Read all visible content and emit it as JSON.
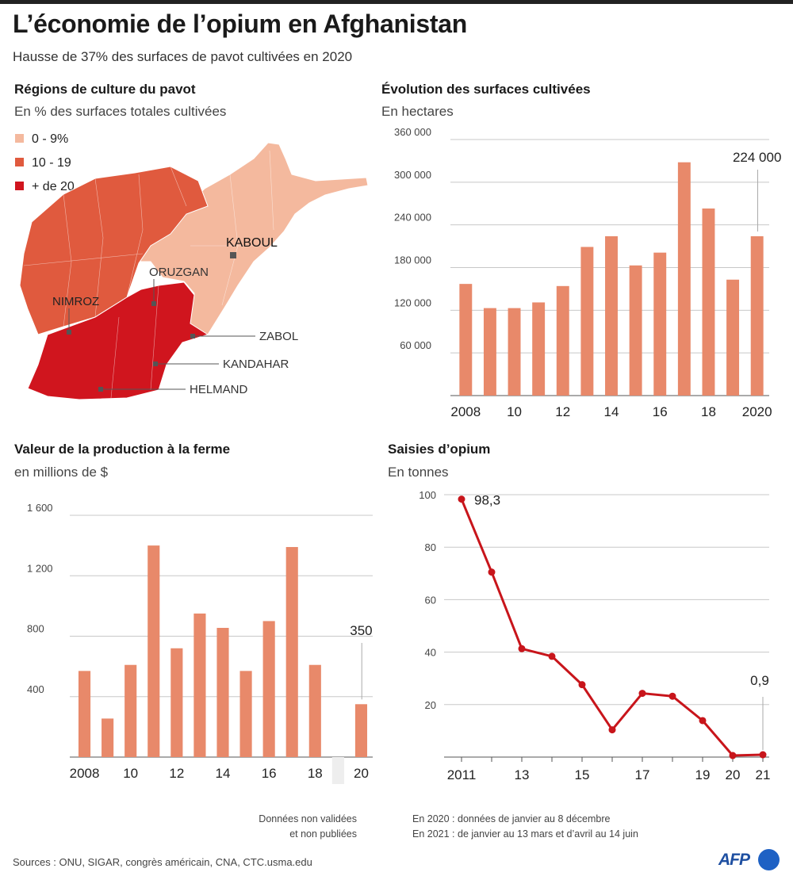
{
  "header": {
    "title": "L’économie de l’opium en Afghanistan",
    "subtitle": "Hausse de 37% des surfaces de pavot cultivées en 2020"
  },
  "map": {
    "title": "Régions de culture du pavot",
    "subtitle": "En % des surfaces totales cultivées",
    "legend": [
      {
        "label": "0 - 9%",
        "color": "#f4b99e"
      },
      {
        "label": "10 - 19",
        "color": "#e05a3e"
      },
      {
        "label": "+ de 20",
        "color": "#d0151e"
      }
    ],
    "labels": {
      "kaboul": "KABOUL",
      "oruzgan": "ORUZGAN",
      "nimroz": "NIMROZ",
      "zabol": "ZABOL",
      "kandahar": "KANDAHAR",
      "helmand": "HELMAND"
    }
  },
  "surfaces": {
    "title": "Évolution des surfaces cultivées",
    "subtitle": "En hectares",
    "highlight_label": "224 000"
  },
  "production": {
    "title": "Valeur de la production à la ferme",
    "subtitle": "en millions de $",
    "highlight_label": "350",
    "note_line1": "Données non validées",
    "note_line2": "et non publiées"
  },
  "saisies": {
    "title": "Saisies d’opium",
    "subtitle": "En tonnes",
    "label_first": "98,3",
    "label_last": "0,9",
    "note_line1": "En 2020 : données de janvier au 8 décembre",
    "note_line2": "En 2021 : de janvier au 13 mars et d’avril au 14 juin"
  },
  "footer": {
    "sources": "Sources : ONU, SIGAR, congrès américain, CNA, CTC.usma.edu",
    "logo": "AFP"
  },
  "colors": {
    "bar": "#e8896a",
    "line": "#c8151b",
    "grid": "#c8c8c8",
    "nodata": "#eeeeee"
  },
  "chart_data": [
    {
      "id": "surfaces",
      "type": "bar",
      "x": [
        2008,
        2009,
        2010,
        2011,
        2012,
        2013,
        2014,
        2015,
        2016,
        2017,
        2018,
        2019,
        2020
      ],
      "values": [
        157000,
        123000,
        123000,
        131000,
        154000,
        209000,
        224000,
        183000,
        201000,
        328000,
        263000,
        163000,
        224000
      ],
      "ylim": [
        0,
        360000
      ],
      "yticks": [
        60000,
        120000,
        180000,
        240000,
        300000,
        360000
      ],
      "ytick_labels": [
        "60 000",
        "120 000",
        "180 000",
        "240 000",
        "300 000",
        "360 000"
      ],
      "xtick_labels": [
        {
          "x": 2008,
          "label": "2008"
        },
        {
          "x": 2010,
          "label": "10"
        },
        {
          "x": 2012,
          "label": "12"
        },
        {
          "x": 2014,
          "label": "14"
        },
        {
          "x": 2016,
          "label": "16"
        },
        {
          "x": 2018,
          "label": "18"
        },
        {
          "x": 2020,
          "label": "2020"
        }
      ],
      "annotation": {
        "x": 2020,
        "label": "224 000"
      },
      "grid": true
    },
    {
      "id": "production",
      "type": "bar",
      "x": [
        2008,
        2009,
        2010,
        2011,
        2012,
        2013,
        2014,
        2015,
        2016,
        2017,
        2018,
        2019,
        2020
      ],
      "values": [
        570,
        255,
        610,
        1400,
        720,
        950,
        855,
        570,
        900,
        1390,
        610,
        null,
        350
      ],
      "no_data": [
        2019
      ],
      "ylim": [
        0,
        1600
      ],
      "yticks": [
        400,
        800,
        1200,
        1600
      ],
      "ytick_labels": [
        "400",
        "800",
        "1 200",
        "1 600"
      ],
      "xtick_labels": [
        {
          "x": 2008,
          "label": "2008"
        },
        {
          "x": 2010,
          "label": "10"
        },
        {
          "x": 2012,
          "label": "12"
        },
        {
          "x": 2014,
          "label": "14"
        },
        {
          "x": 2016,
          "label": "16"
        },
        {
          "x": 2018,
          "label": "18"
        },
        {
          "x": 2020,
          "label": "20"
        }
      ],
      "annotation": {
        "x": 2020,
        "label": "350"
      },
      "grid": true
    },
    {
      "id": "saisies",
      "type": "line",
      "x": [
        2011,
        2012,
        2013,
        2014,
        2015,
        2016,
        2017,
        2018,
        2019,
        2020,
        2021
      ],
      "values": [
        98.3,
        70.5,
        41.3,
        38.4,
        27.6,
        10.4,
        24.3,
        23.2,
        13.9,
        0.6,
        0.9
      ],
      "ylim": [
        0,
        100
      ],
      "yticks": [
        20,
        40,
        60,
        80,
        100
      ],
      "ytick_labels": [
        "20",
        "40",
        "60",
        "80",
        "100"
      ],
      "xtick_labels": [
        {
          "x": 2011,
          "label": "2011"
        },
        {
          "x": 2013,
          "label": "13"
        },
        {
          "x": 2015,
          "label": "15"
        },
        {
          "x": 2017,
          "label": "17"
        },
        {
          "x": 2019,
          "label": "19"
        },
        {
          "x": 2020,
          "label": "20"
        },
        {
          "x": 2021,
          "label": "21"
        }
      ],
      "annotations": [
        {
          "x": 2011,
          "label": "98,3"
        },
        {
          "x": 2021,
          "label": "0,9"
        }
      ],
      "grid": true
    }
  ]
}
